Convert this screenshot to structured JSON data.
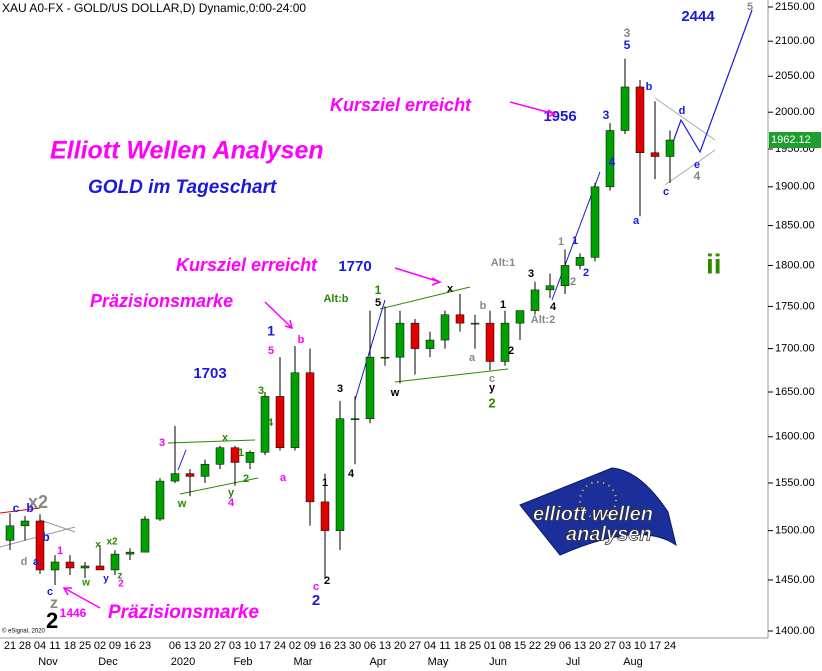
{
  "chart_data": {
    "type": "candlestick",
    "title": "XAU A0-FX - GOLD/US DOLLAR,D) Dynamic,0:00-24:00",
    "categories": [
      "21",
      "28",
      "04",
      "11",
      "18",
      "25",
      "02",
      "09",
      "16",
      "23",
      null,
      "06",
      "13",
      "20",
      "27",
      "03",
      "10",
      "17",
      "24",
      "02",
      "09",
      "16",
      "23",
      "30",
      "06",
      "13",
      "20",
      "27",
      "04",
      "11",
      "18",
      "25",
      "01",
      "08",
      "15",
      "22",
      "29",
      "06",
      "13",
      "20",
      "27",
      "03",
      "10",
      "17",
      "24",
      null,
      null,
      null,
      null,
      null,
      null
    ],
    "month_labels": [
      null,
      null,
      "Nov",
      null,
      null,
      null,
      "Dec",
      null,
      null,
      null,
      null,
      "2020",
      null,
      null,
      null,
      "Feb",
      null,
      null,
      null,
      "Mar",
      null,
      null,
      null,
      null,
      "Apr",
      null,
      null,
      null,
      "May",
      null,
      null,
      null,
      "Jun",
      null,
      null,
      null,
      null,
      "Jul",
      null,
      null,
      null,
      "Aug",
      null,
      null,
      null,
      null,
      null,
      null,
      null,
      null,
      null
    ],
    "open": [
      1490,
      1505,
      1510,
      1460,
      1468,
      1462,
      1464,
      1460,
      1476,
      1478,
      1512,
      1552,
      1560,
      1557,
      1570,
      1588,
      1572,
      1583,
      1645,
      1588,
      1672,
      1530,
      1500,
      1620,
      1620,
      1690,
      1690,
      1730,
      1700,
      1710,
      1740,
      1730,
      1730,
      1685,
      1730,
      1745,
      1770,
      1775,
      1800,
      1810,
      1900,
      1975,
      2035,
      1945,
      1940,
      null,
      null,
      null,
      null,
      null,
      null
    ],
    "high": [
      1518,
      1515,
      1517,
      1475,
      1475,
      1468,
      1485,
      1480,
      1482,
      1515,
      1555,
      1612,
      1565,
      1575,
      1590,
      1590,
      1585,
      1650,
      1690,
      1703,
      1700,
      1560,
      1640,
      1645,
      1745,
      1750,
      1745,
      1735,
      1720,
      1745,
      1765,
      1740,
      1745,
      1745,
      1745,
      1780,
      1790,
      1820,
      1815,
      1905,
      1985,
      2075,
      2045,
      2015,
      1975,
      null,
      null,
      null,
      null,
      null,
      null
    ],
    "low": [
      1480,
      1490,
      1456,
      1445,
      1455,
      1452,
      1460,
      1455,
      1470,
      1478,
      1510,
      1550,
      1536,
      1550,
      1565,
      1547,
      1565,
      1580,
      1585,
      1585,
      1505,
      1451,
      1480,
      1570,
      1615,
      1680,
      1660,
      1670,
      1690,
      1700,
      1720,
      1700,
      1675,
      1680,
      1710,
      1740,
      1760,
      1765,
      1795,
      1805,
      1895,
      1970,
      1862,
      1910,
      1905,
      null,
      null,
      null,
      null,
      null,
      null
    ],
    "close": [
      1505,
      1510,
      1460,
      1468,
      1462,
      1464,
      1460,
      1476,
      1478,
      1512,
      1552,
      1560,
      1557,
      1570,
      1588,
      1572,
      1583,
      1645,
      1588,
      1672,
      1530,
      1500,
      1620,
      1620,
      1690,
      1690,
      1730,
      1700,
      1710,
      1740,
      1730,
      1730,
      1685,
      1730,
      1745,
      1770,
      1775,
      1800,
      1810,
      1900,
      1975,
      2035,
      1945,
      1940,
      1962.12,
      null,
      null,
      null,
      null,
      null,
      null
    ],
    "up_color": "#00a000",
    "down_color": "#e00000",
    "wick_color": "#000000",
    "log_scale": true,
    "ylim": [
      1400,
      2150
    ],
    "yticks": [
      {
        "value": 1400,
        "label": "1400.00"
      },
      {
        "value": 1450,
        "label": "1450.00"
      },
      {
        "value": 1500,
        "label": "1500.00"
      },
      {
        "value": 1550,
        "label": "1550.00"
      },
      {
        "value": 1600,
        "label": "1600.00"
      },
      {
        "value": 1650,
        "label": "1650.00"
      },
      {
        "value": 1700,
        "label": "1700.00"
      },
      {
        "value": 1750,
        "label": "1750.00"
      },
      {
        "value": 1800,
        "label": "1800.00"
      },
      {
        "value": 1850,
        "label": "1850.00"
      },
      {
        "value": 1900,
        "label": "1900.00"
      },
      {
        "value": 1950,
        "label": "1950.00"
      },
      {
        "value": 2000,
        "label": "2000.00"
      },
      {
        "value": 2050,
        "label": "2050.00"
      },
      {
        "value": 2100,
        "label": "2100.00"
      },
      {
        "value": 2150,
        "label": "2150.00"
      }
    ],
    "last_price": 1962.12,
    "copyright": "© eSignal, 2020",
    "annotations": [
      "Elliott Wellen Analysen",
      "GOLD im Tageschart",
      "Kursziel erreicht",
      "1956",
      "Kursziel erreicht",
      "1770",
      "Präzisionsmarke",
      "1703",
      "Präzisionsmarke",
      "1446",
      "2444",
      "ii",
      "Alt:b",
      "Alt:1",
      "Alt:2",
      "5",
      "3",
      "5",
      "3",
      "4",
      "b",
      "d",
      "a",
      "c",
      "e",
      "4",
      "1",
      "1",
      "2",
      "2",
      "3",
      "4",
      "1",
      "2",
      "x",
      "b",
      "a",
      "c",
      "y",
      "2",
      "1",
      "5",
      "w",
      "1",
      "5",
      "b",
      "3",
      "4",
      "a",
      "1",
      "c",
      "2",
      "2",
      "3",
      "4",
      "3",
      "x",
      "1",
      "2",
      "w",
      "y",
      "4",
      "x2",
      "c",
      "b",
      "b",
      "1",
      "d",
      "a",
      "c",
      "z",
      "2",
      "x",
      "x2",
      "w",
      "y",
      "z",
      "2"
    ],
    "logo": {
      "line1": "elliott wellen",
      "line2": "analysen"
    }
  }
}
